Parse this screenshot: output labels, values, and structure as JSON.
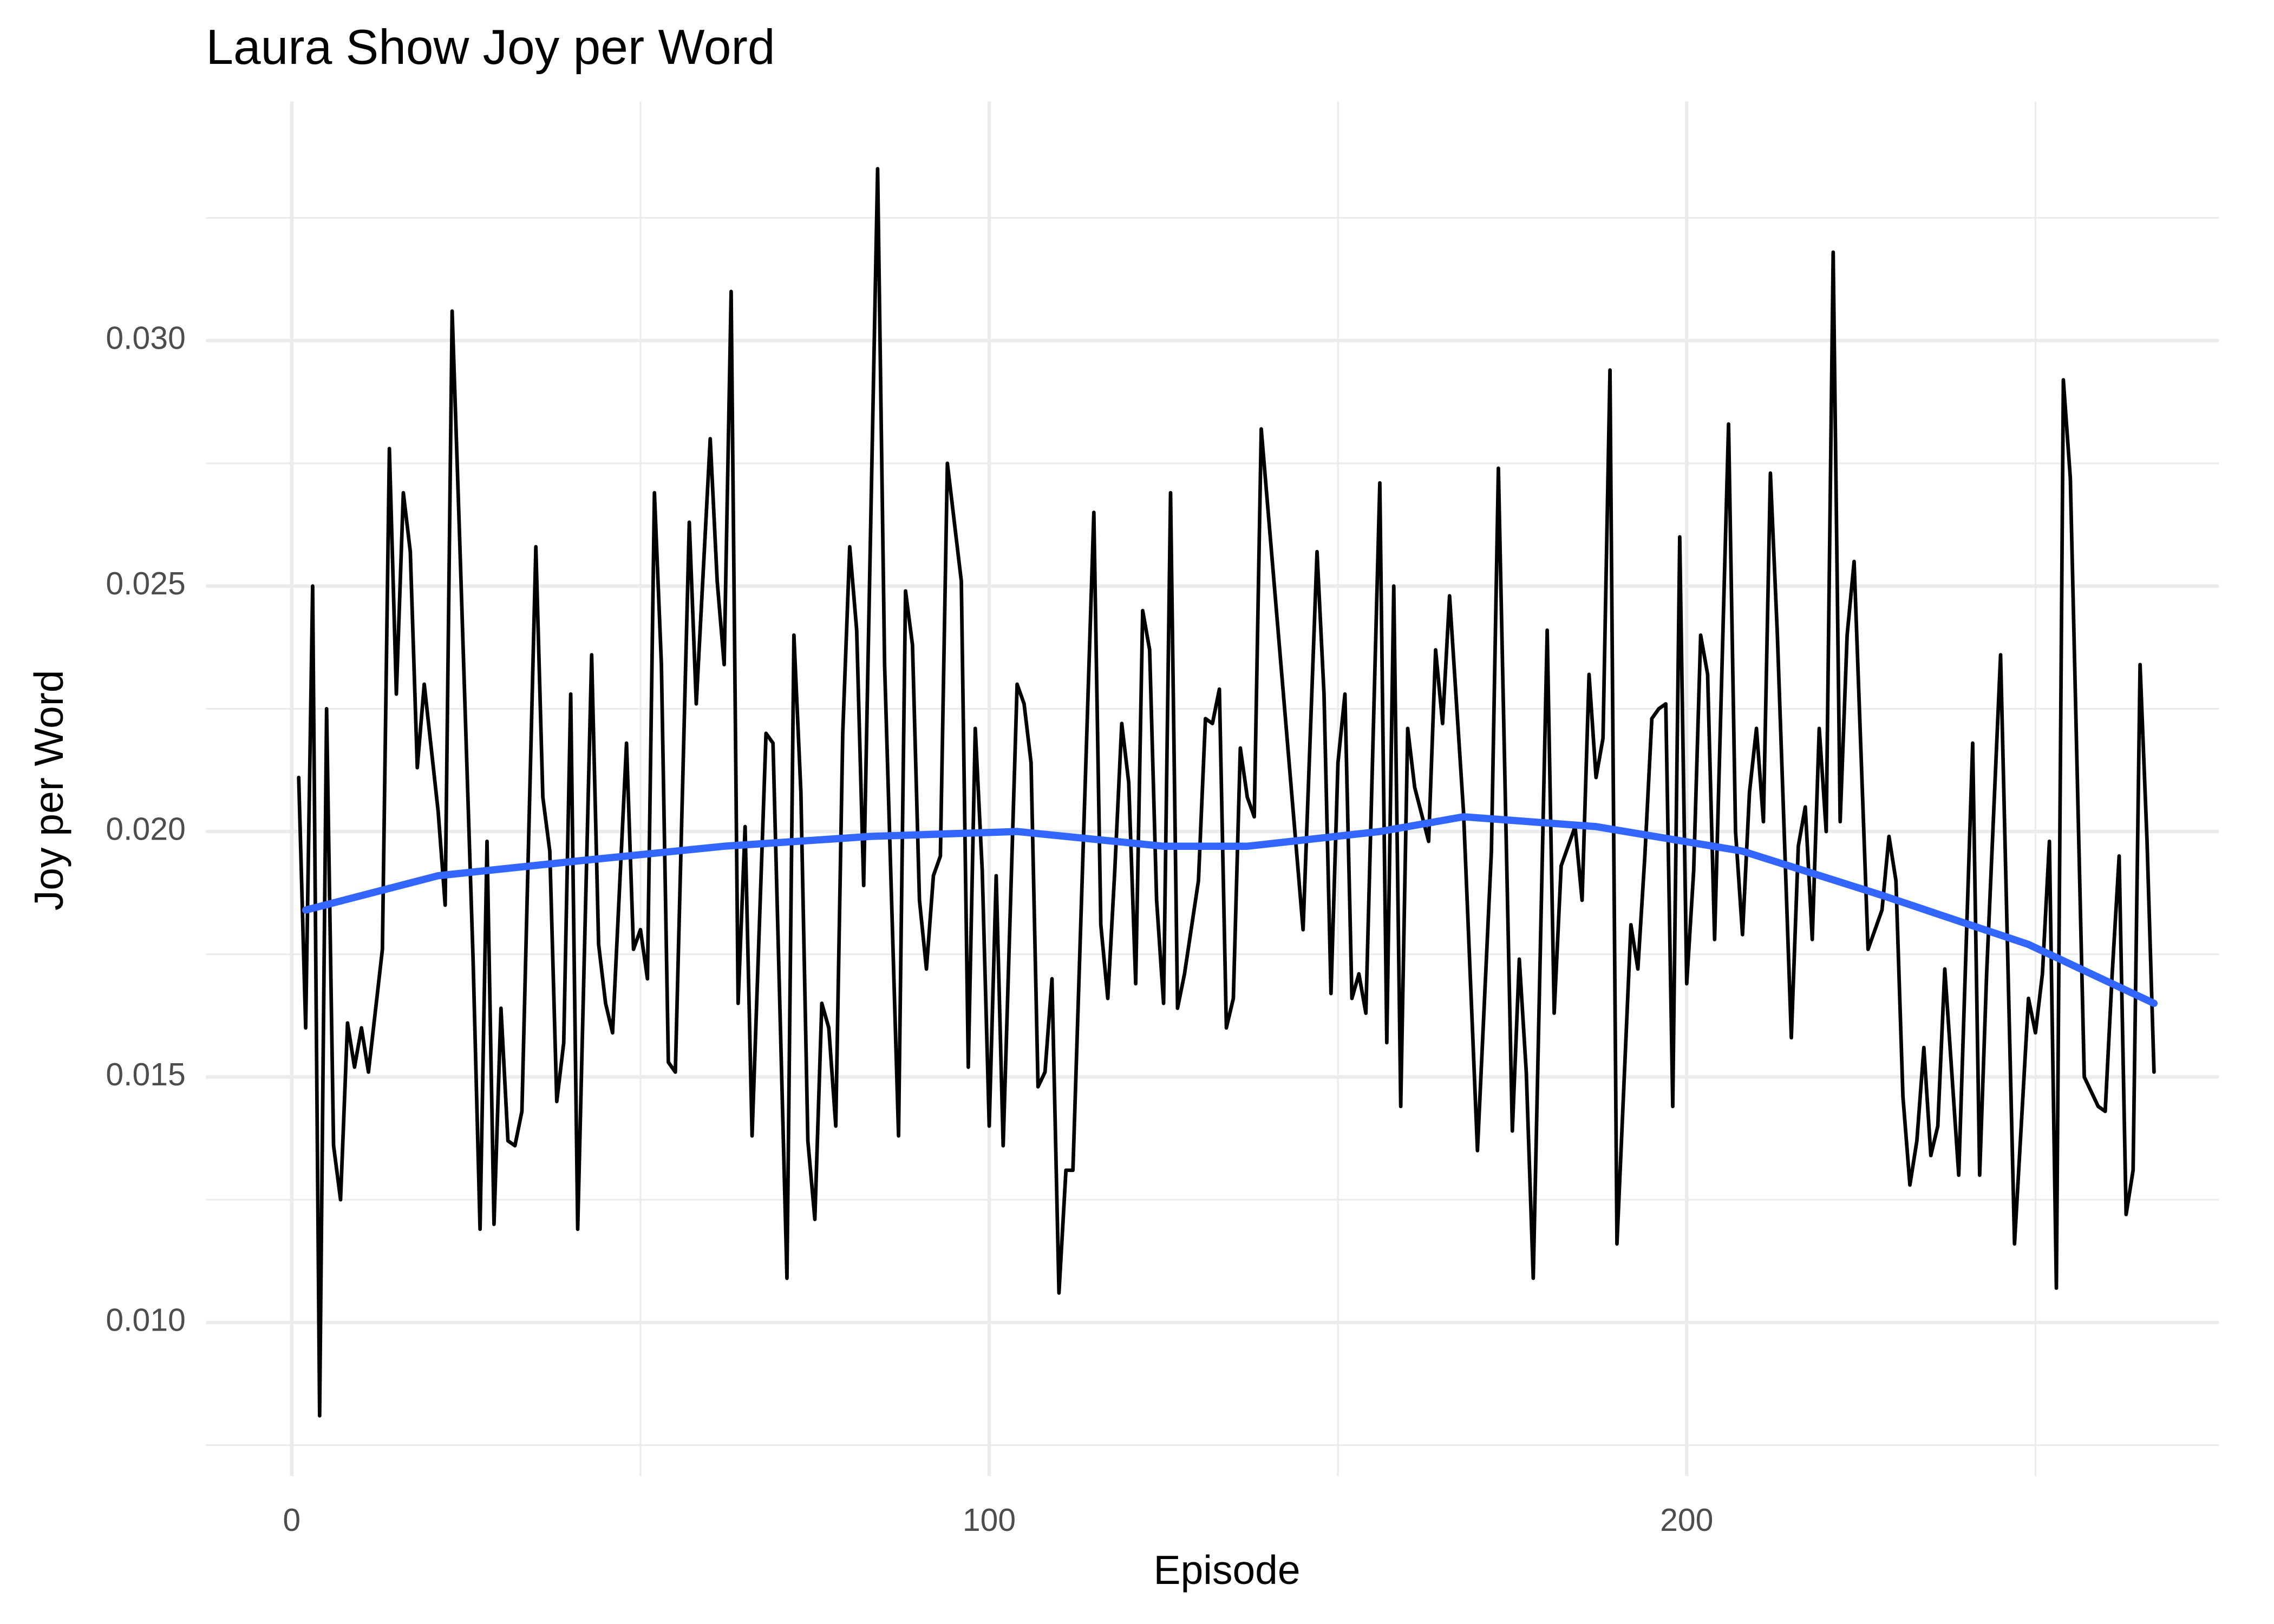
{
  "chart_data": {
    "type": "line",
    "title": "Laura Show Joy per Word",
    "x_label": "Episode",
    "y_label": "Joy per Word",
    "xlim": [
      -12.3,
      276.3
    ],
    "ylim": [
      0.00687,
      0.03487
    ],
    "xticks": [
      0,
      100,
      200
    ],
    "yticks": [
      {
        "value": 0.01,
        "label": "0.010"
      },
      {
        "value": 0.015,
        "label": "0.015"
      },
      {
        "value": 0.02,
        "label": "0.020"
      },
      {
        "value": 0.025,
        "label": "0.025"
      },
      {
        "value": 0.03,
        "label": "0.030"
      }
    ],
    "xminor": [
      50,
      150,
      250
    ],
    "yminor": [
      0.0075,
      0.0125,
      0.0175,
      0.0225,
      0.0275,
      0.0325
    ],
    "grid": true,
    "series": [
      {
        "color": "#000000",
        "width": 2.5,
        "x": [
          1,
          2,
          3,
          4,
          5,
          6,
          7,
          8,
          9,
          10,
          11,
          13,
          14,
          15,
          16,
          17,
          18,
          19,
          21,
          22,
          23,
          24,
          26,
          27,
          28,
          29,
          30,
          31,
          32,
          33,
          35,
          36,
          37,
          38,
          39,
          40,
          41,
          43,
          44,
          45,
          46,
          48,
          49,
          50,
          51,
          52,
          53,
          54,
          55,
          57,
          58,
          60,
          61,
          62,
          63,
          64,
          65,
          66,
          68,
          69,
          71,
          72,
          73,
          74,
          75,
          76,
          77,
          78,
          79,
          80,
          81,
          82,
          84,
          85,
          87,
          88,
          89,
          90,
          91,
          92,
          93,
          94,
          96,
          97,
          98,
          99,
          100,
          101,
          102,
          104,
          105,
          106,
          107,
          108,
          109,
          110,
          111,
          112,
          115,
          116,
          117,
          118,
          119,
          120,
          121,
          122,
          123,
          124,
          125,
          126,
          127,
          128,
          130,
          131,
          132,
          133,
          134,
          135,
          136,
          137,
          138,
          139,
          145,
          147,
          148,
          149,
          150,
          151,
          152,
          153,
          154,
          156,
          157,
          158,
          159,
          160,
          161,
          163,
          164,
          165,
          166,
          168,
          170,
          172,
          173,
          175,
          176,
          177,
          178,
          180,
          181,
          182,
          184,
          185,
          186,
          187,
          188,
          189,
          190,
          192,
          193,
          194,
          195,
          196,
          197,
          198,
          199,
          200,
          201,
          202,
          203,
          204,
          206,
          207,
          208,
          209,
          210,
          211,
          212,
          213,
          215,
          216,
          217,
          218,
          219,
          220,
          221,
          222,
          223,
          224,
          226,
          228,
          229,
          230,
          231,
          232,
          233,
          234,
          235,
          236,
          237,
          239,
          241,
          242,
          243,
          245,
          247,
          249,
          250,
          251,
          252,
          253,
          254,
          255,
          257,
          259,
          260,
          261,
          262,
          263,
          264,
          265,
          266,
          267
        ],
        "values": [
          0.0211,
          0.016,
          0.025,
          0.0081,
          0.0225,
          0.0136,
          0.0125,
          0.0161,
          0.0152,
          0.016,
          0.0151,
          0.0176,
          0.0278,
          0.0228,
          0.0269,
          0.0257,
          0.0213,
          0.023,
          0.0204,
          0.0185,
          0.0306,
          0.0263,
          0.0174,
          0.0119,
          0.0198,
          0.012,
          0.0164,
          0.0137,
          0.0136,
          0.0143,
          0.0258,
          0.0207,
          0.0196,
          0.0145,
          0.0157,
          0.0228,
          0.0119,
          0.0236,
          0.0177,
          0.0165,
          0.0159,
          0.0218,
          0.0176,
          0.018,
          0.017,
          0.0269,
          0.0234,
          0.0153,
          0.0151,
          0.0263,
          0.0226,
          0.028,
          0.0251,
          0.0234,
          0.031,
          0.0165,
          0.0201,
          0.0138,
          0.022,
          0.0218,
          0.0109,
          0.024,
          0.0208,
          0.0137,
          0.0121,
          0.0165,
          0.016,
          0.014,
          0.022,
          0.0258,
          0.0241,
          0.0189,
          0.0335,
          0.0234,
          0.0138,
          0.0249,
          0.0238,
          0.0186,
          0.0172,
          0.0191,
          0.0195,
          0.0275,
          0.0251,
          0.0152,
          0.0221,
          0.0192,
          0.014,
          0.0191,
          0.0136,
          0.023,
          0.0226,
          0.0214,
          0.0148,
          0.0151,
          0.017,
          0.0106,
          0.0131,
          0.0131,
          0.0265,
          0.0181,
          0.0166,
          0.0192,
          0.0222,
          0.021,
          0.0169,
          0.0245,
          0.0237,
          0.0186,
          0.0165,
          0.0269,
          0.0164,
          0.0171,
          0.019,
          0.0223,
          0.0222,
          0.0229,
          0.016,
          0.0166,
          0.0217,
          0.0207,
          0.0203,
          0.0282,
          0.018,
          0.0257,
          0.0228,
          0.0167,
          0.0214,
          0.0228,
          0.0166,
          0.0171,
          0.0163,
          0.0271,
          0.0157,
          0.025,
          0.0144,
          0.0221,
          0.0209,
          0.0198,
          0.0237,
          0.0222,
          0.0248,
          0.0204,
          0.0135,
          0.0196,
          0.0274,
          0.0139,
          0.0174,
          0.0151,
          0.0109,
          0.0241,
          0.0163,
          0.0193,
          0.0201,
          0.0186,
          0.0232,
          0.0211,
          0.0219,
          0.0294,
          0.0116,
          0.0181,
          0.0172,
          0.0195,
          0.0223,
          0.0225,
          0.0226,
          0.0144,
          0.026,
          0.0169,
          0.0192,
          0.024,
          0.0232,
          0.0178,
          0.0283,
          0.02,
          0.0179,
          0.0208,
          0.0221,
          0.0202,
          0.0273,
          0.024,
          0.0158,
          0.0197,
          0.0205,
          0.0178,
          0.0221,
          0.02,
          0.0318,
          0.0202,
          0.024,
          0.0255,
          0.0176,
          0.0184,
          0.0199,
          0.019,
          0.0146,
          0.0128,
          0.0137,
          0.0156,
          0.0134,
          0.014,
          0.0172,
          0.013,
          0.0218,
          0.013,
          0.0171,
          0.0236,
          0.0116,
          0.0166,
          0.0159,
          0.0171,
          0.0198,
          0.0107,
          0.0292,
          0.0272,
          0.015,
          0.0144,
          0.0143,
          0.0171,
          0.0195,
          0.0122,
          0.0131,
          0.0234,
          0.0198,
          0.0151
        ]
      },
      {
        "color": "#3366ff",
        "width": 5,
        "x": [
          2,
          21,
          41,
          62,
          83,
          104,
          125,
          137,
          156,
          168,
          187,
          208,
          228,
          249,
          267
        ],
        "values": [
          0.0184,
          0.0191,
          0.0194,
          0.0197,
          0.0199,
          0.02,
          0.0197,
          0.0197,
          0.02,
          0.0203,
          0.0201,
          0.0196,
          0.0187,
          0.0177,
          0.0165
        ]
      }
    ]
  }
}
